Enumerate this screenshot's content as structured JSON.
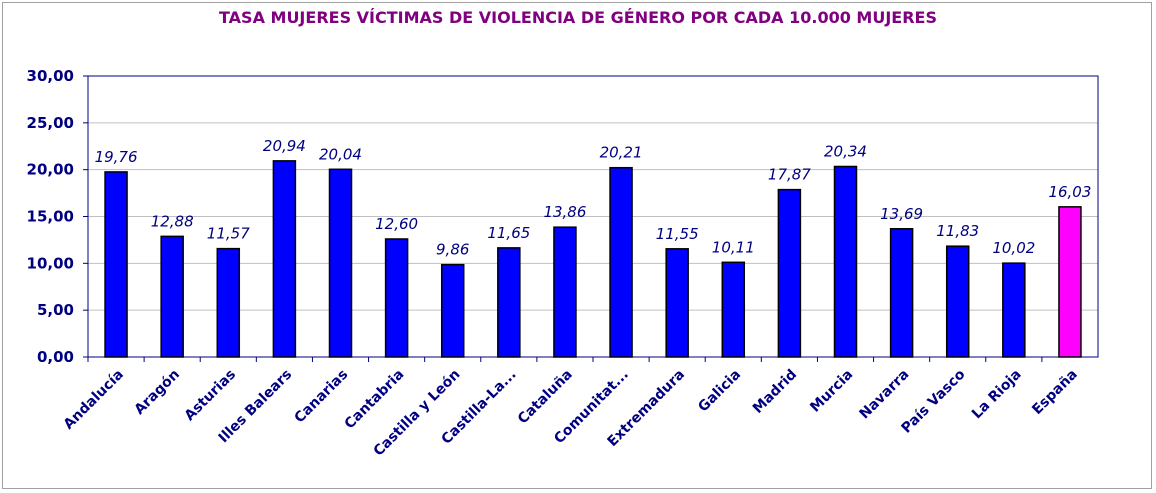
{
  "chart_data": {
    "type": "bar",
    "title": "TASA MUJERES VÍCTIMAS DE VIOLENCIA DE GÉNERO POR CADA 10.000 MUJERES",
    "xlabel": "",
    "ylabel": "",
    "ylim": [
      0,
      30
    ],
    "yticks": [
      "0,00",
      "5,00",
      "10,00",
      "15,00",
      "20,00",
      "25,00",
      "30,00"
    ],
    "grid": true,
    "legend": "none",
    "categories": [
      "Andalucía",
      "Aragón",
      "Asturias",
      "Illes Balears",
      "Canarias",
      "Cantabria",
      "Castilla y León",
      "Castilla-La...",
      "Cataluña",
      "Comunitat...",
      "Extremadura",
      "Galicia",
      "Madrid",
      "Murcia",
      "Navarra",
      "País Vasco",
      "La Rioja",
      "España"
    ],
    "values": [
      19.76,
      12.88,
      11.57,
      20.94,
      20.04,
      12.6,
      9.86,
      11.65,
      13.86,
      20.21,
      11.55,
      10.11,
      17.87,
      20.34,
      13.69,
      11.83,
      10.02,
      16.03
    ],
    "data_labels": [
      "19,76",
      "12,88",
      "11,57",
      "20,94",
      "20,04",
      "12,60",
      "9,86",
      "11,65",
      "13,86",
      "20,21",
      "11,55",
      "10,11",
      "17,87",
      "20,34",
      "13,69",
      "11,83",
      "10,02",
      "16,03"
    ],
    "colors": {
      "bar": "#0000ff",
      "highlight_bar": "#ff00ff",
      "highlight_category": "España",
      "bar_outline": "#000000",
      "axis_text": "#000080",
      "title": "#800080",
      "grid": "#c0c0c0",
      "plot_border": "#000080"
    }
  }
}
